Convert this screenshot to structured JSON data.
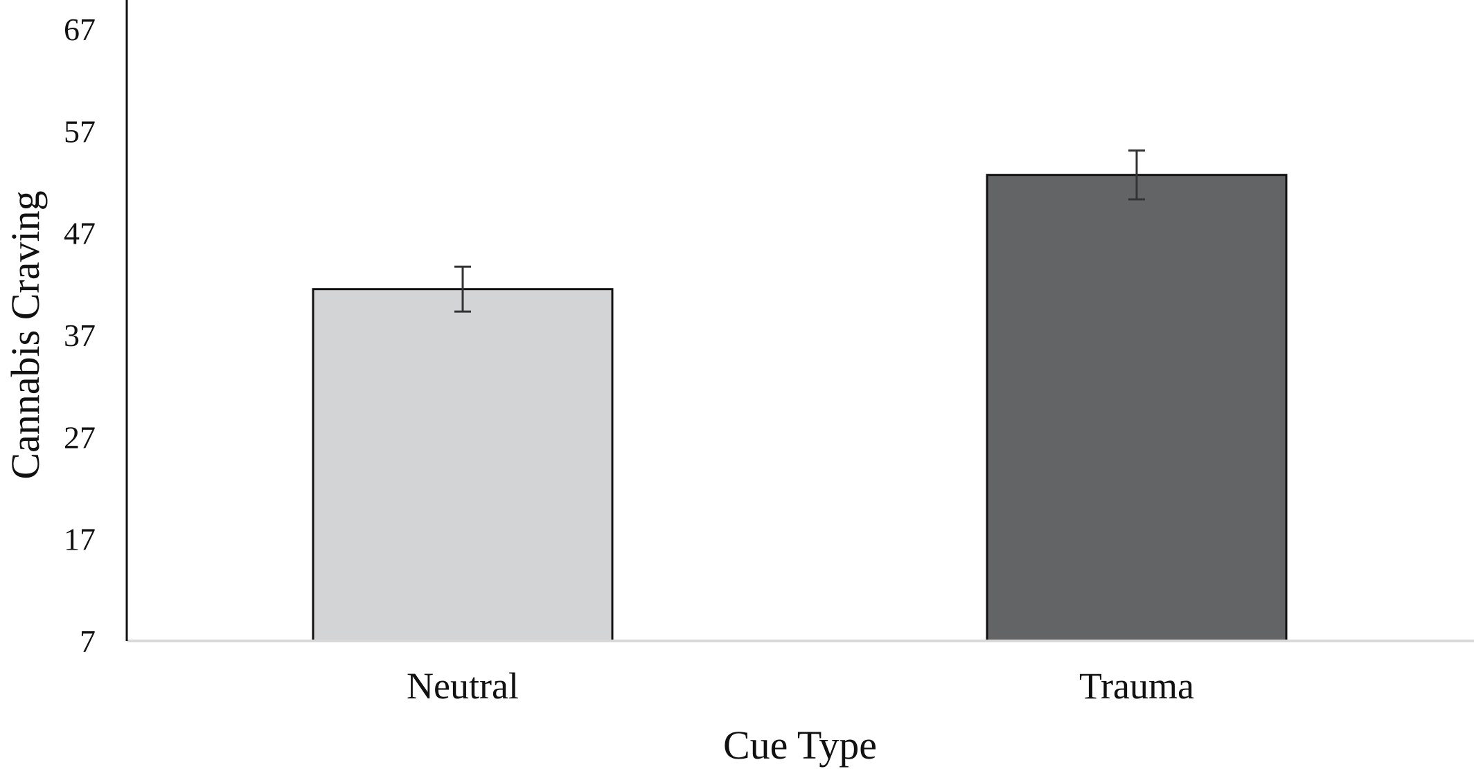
{
  "chart_data": {
    "type": "bar",
    "title": "",
    "xlabel": "Cue Type",
    "ylabel": "Cannabis Craving",
    "categories": [
      "Neutral",
      "Trauma"
    ],
    "values": [
      41.5,
      52.7
    ],
    "error": [
      2.2,
      2.4
    ],
    "ylim": [
      7,
      67
    ],
    "yticks": [
      7,
      17,
      27,
      37,
      47,
      57,
      67
    ],
    "colors": [
      "#d3d4d6",
      "#636466"
    ],
    "grid": false,
    "legend": "none"
  }
}
